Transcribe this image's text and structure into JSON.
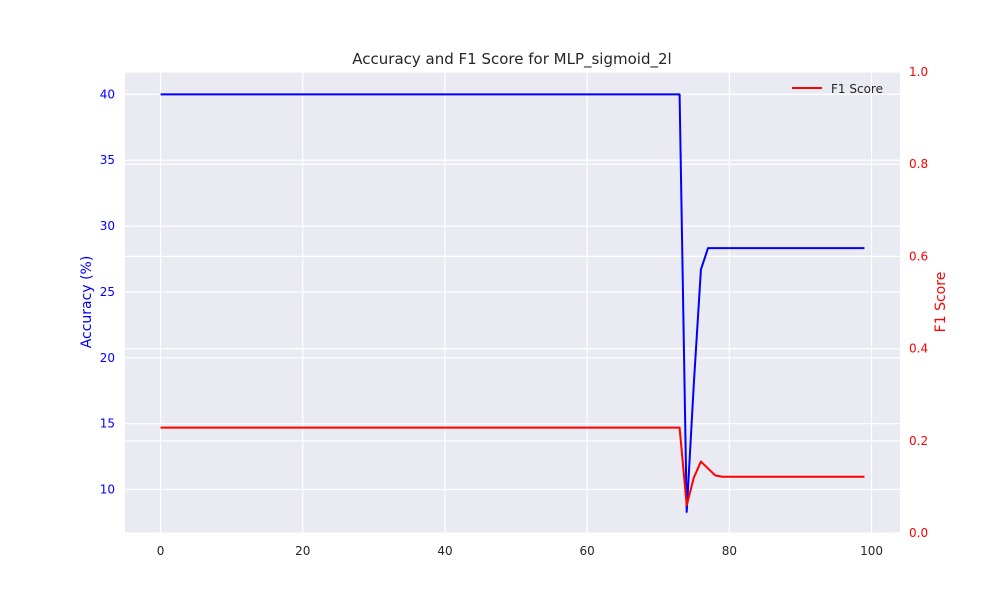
{
  "chart_data": {
    "type": "line",
    "title": "Accuracy and F1 Score for MLP_sigmoid_2l",
    "xlabel": "",
    "ylabel": "Accuracy (%)",
    "y2label": "F1 Score",
    "xlim": [
      -5,
      104
    ],
    "ylim": [
      6.7,
      41.7
    ],
    "y2lim": [
      0.0,
      1.0
    ],
    "xticks": [
      0,
      20,
      40,
      60,
      80,
      100
    ],
    "yticks": [
      10,
      15,
      20,
      25,
      30,
      35,
      40
    ],
    "y2ticks": [
      0.0,
      0.2,
      0.4,
      0.6,
      0.8,
      1.0
    ],
    "grid": true,
    "legend_position": "top-right",
    "series": [
      {
        "name": "",
        "axis": "left",
        "color": "#0000ff",
        "x": [
          0,
          73,
          74,
          75,
          76,
          77,
          99
        ],
        "y": [
          40.0,
          40.0,
          8.3,
          18.0,
          26.7,
          28.33,
          28.33
        ]
      },
      {
        "name": "F1 Score",
        "axis": "right",
        "color": "#ff0000",
        "x": [
          0,
          73,
          74,
          75,
          76,
          77,
          78,
          79,
          99
        ],
        "y": [
          0.2286,
          0.2286,
          0.06,
          0.12,
          0.155,
          0.14,
          0.125,
          0.122,
          0.122
        ]
      }
    ]
  },
  "style": {
    "plot_background": "#eaeaf2",
    "grid_color": "#ffffff",
    "left_axis_color": "#0000ff",
    "right_axis_color": "#ff0000",
    "text_color": "#262626"
  }
}
